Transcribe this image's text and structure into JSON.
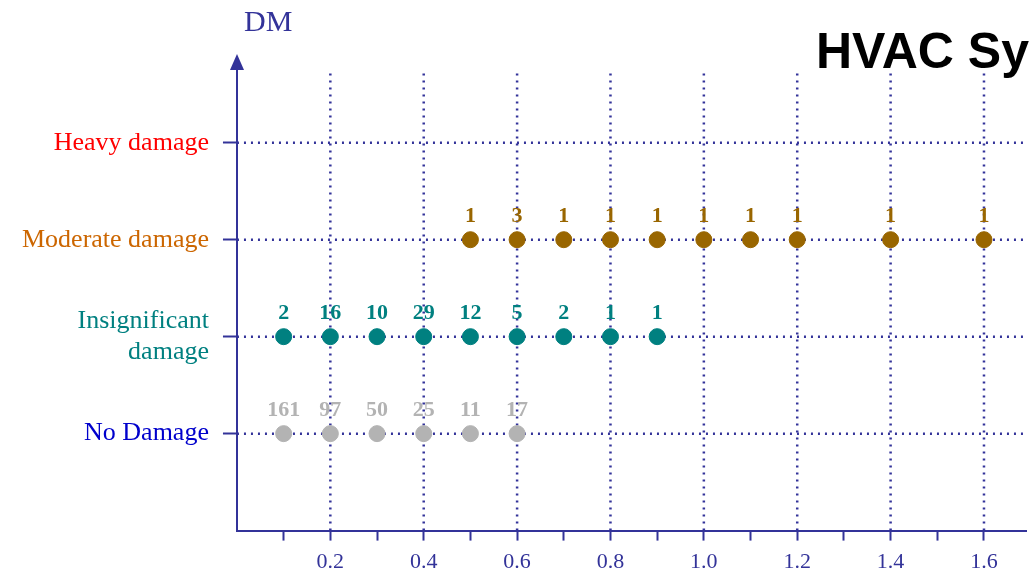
{
  "chart_data": {
    "type": "scatter",
    "title": "HVAC Sy",
    "ylabel": "DM",
    "orientation": "horizontal",
    "categories": [
      "Heavy damage",
      "Moderate damage",
      "Insignificant damage",
      "No Damage"
    ],
    "series": [
      {
        "color": "#b3b3b3",
        "x": [
          "No Damage",
          "No Damage",
          "No Damage",
          "No Damage",
          "No Damage",
          "No Damage"
        ],
        "values": [
          0.1,
          0.2,
          0.3,
          0.4,
          0.5,
          0.6
        ]
      },
      {
        "color": "#008080",
        "x": [
          "Insignificant damage",
          "Insignificant damage",
          "Insignificant damage",
          "Insignificant damage",
          "Insignificant damage",
          "Insignificant damage",
          "Insignificant damage",
          "Insignificant damage",
          "Insignificant damage"
        ],
        "values": [
          0.1,
          0.2,
          0.3,
          0.4,
          0.5,
          0.6,
          0.7,
          0.8,
          0.9
        ]
      },
      {
        "color": "#996600",
        "x": [
          "Moderate damage",
          "Moderate damage",
          "Moderate damage",
          "Moderate damage",
          "Moderate damage",
          "Moderate damage",
          "Moderate damage",
          "Moderate damage",
          "Moderate damage",
          "Moderate damage"
        ],
        "values": [
          0.5,
          0.6,
          0.7,
          0.8,
          0.9,
          1.0,
          1.1,
          1.2,
          1.4,
          1.6
        ]
      }
    ],
    "annotations": [
      {
        "text": "161",
        "x": 0.1,
        "y": "No Damage"
      },
      {
        "text": "97",
        "x": 0.2,
        "y": "No Damage"
      },
      {
        "text": "50",
        "x": 0.3,
        "y": "No Damage"
      },
      {
        "text": "25",
        "x": 0.4,
        "y": "No Damage"
      },
      {
        "text": "11",
        "x": 0.5,
        "y": "No Damage"
      },
      {
        "text": "17",
        "x": 0.6,
        "y": "No Damage"
      },
      {
        "text": "2",
        "x": 0.1,
        "y": "Insignificant damage"
      },
      {
        "text": "16",
        "x": 0.2,
        "y": "Insignificant damage"
      },
      {
        "text": "10",
        "x": 0.3,
        "y": "Insignificant damage"
      },
      {
        "text": "29",
        "x": 0.4,
        "y": "Insignificant damage"
      },
      {
        "text": "12",
        "x": 0.5,
        "y": "Insignificant damage"
      },
      {
        "text": "5",
        "x": 0.6,
        "y": "Insignificant damage"
      },
      {
        "text": "2",
        "x": 0.7,
        "y": "Insignificant damage"
      },
      {
        "text": "1",
        "x": 0.8,
        "y": "Insignificant damage"
      },
      {
        "text": "1",
        "x": 0.9,
        "y": "Insignificant damage"
      },
      {
        "text": "1",
        "x": 0.5,
        "y": "Moderate damage"
      },
      {
        "text": "3",
        "x": 0.6,
        "y": "Moderate damage"
      },
      {
        "text": "1",
        "x": 0.7,
        "y": "Moderate damage"
      },
      {
        "text": "1",
        "x": 0.8,
        "y": "Moderate damage"
      },
      {
        "text": "1",
        "x": 0.9,
        "y": "Moderate damage"
      },
      {
        "text": "1",
        "x": 1.0,
        "y": "Moderate damage"
      },
      {
        "text": "1",
        "x": 1.1,
        "y": "Moderate damage"
      },
      {
        "text": "1",
        "x": 1.2,
        "y": "Moderate damage"
      },
      {
        "text": "1",
        "x": 1.4,
        "y": "Moderate damage"
      },
      {
        "text": "1",
        "x": 1.6,
        "y": "Moderate damage"
      }
    ],
    "xlim": [
      0,
      1.69
    ],
    "xticks": [
      {
        "value": 0.1,
        "label": null
      },
      0.2,
      {
        "value": 0.3,
        "label": null
      },
      0.4,
      {
        "value": 0.5,
        "label": null
      },
      0.6,
      {
        "value": 0.7,
        "label": null
      },
      0.8,
      {
        "value": 0.9,
        "label": null
      },
      {
        "value": 1.0,
        "label": "1.0"
      },
      {
        "value": 1.1,
        "label": null
      },
      1.2,
      {
        "value": 1.3,
        "label": null
      },
      1.4,
      {
        "value": 1.5,
        "label": null
      },
      1.6
    ],
    "grid": true,
    "legend": false,
    "marker": "circle"
  }
}
